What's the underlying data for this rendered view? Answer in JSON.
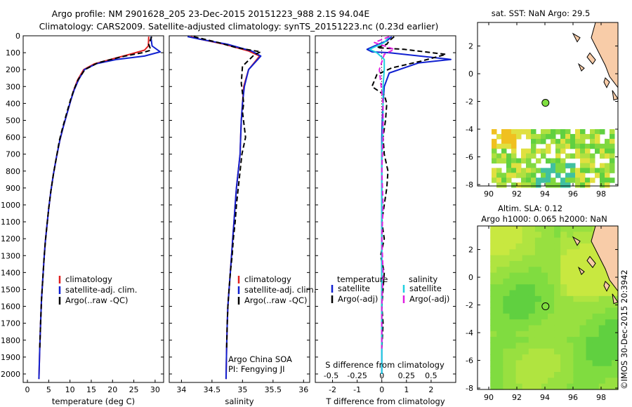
{
  "header": {
    "line1": "Argo profile: NM 2901628_205 23-Dec-2015 20151223_988 2.1S 94.04E",
    "line2": "Climatology: CARS2009. Satellite-adjusted climatology: synTS_20151223.nc (0.23d earlier)"
  },
  "footer": "©IMOS 30-Dec-2015 20:3942",
  "chart_data": [
    {
      "type": "line",
      "panel": "temperature",
      "xlabel": "temperature (deg C)",
      "ylim": [
        2050,
        0
      ],
      "xlim": [
        -1,
        32
      ],
      "xticks": [
        0,
        5,
        10,
        15,
        20,
        25,
        30
      ],
      "yticks": [
        0,
        100,
        200,
        300,
        400,
        500,
        600,
        700,
        800,
        900,
        1000,
        1100,
        1200,
        1300,
        1400,
        1500,
        1600,
        1700,
        1800,
        1900,
        2000
      ],
      "legend": [
        "climatology",
        "satellite-adj. clim.",
        "Argo(..raw -QC)"
      ],
      "series": [
        {
          "name": "climatology",
          "color": "#e02020",
          "x": [
            28.5,
            28.4,
            27.5,
            24,
            20.3,
            15.8,
            13.2,
            11.8,
            10.9,
            10.2,
            9.3,
            8.4,
            7.6,
            6.8,
            6.1,
            5.5,
            5,
            4.6,
            4.2,
            3.9,
            3.6,
            3.3,
            3.1,
            2.9,
            2.7
          ],
          "y": [
            5,
            60,
            85,
            110,
            135,
            165,
            200,
            260,
            320,
            380,
            460,
            540,
            620,
            720,
            820,
            920,
            1020,
            1120,
            1220,
            1320,
            1440,
            1560,
            1700,
            1850,
            2030
          ]
        },
        {
          "name": "satellite-adj. clim.",
          "color": "#1020d0",
          "x": [
            29,
            29.3,
            31.2,
            27.5,
            21,
            16.2,
            13.4,
            12,
            11,
            10.2,
            9.3,
            8.4,
            7.6,
            6.8,
            6.1,
            5.5,
            5,
            4.6,
            4.2,
            3.9,
            3.6,
            3.3,
            3.1,
            2.9,
            2.7
          ],
          "y": [
            5,
            60,
            95,
            120,
            140,
            165,
            200,
            260,
            320,
            380,
            460,
            540,
            620,
            720,
            820,
            920,
            1020,
            1120,
            1220,
            1320,
            1440,
            1560,
            1700,
            1850,
            2030
          ]
        },
        {
          "name": "Argo(..raw -QC)",
          "color": "#000000",
          "dashed": true,
          "x": [
            29.2,
            28.5,
            29,
            27,
            22,
            16.5,
            13.5,
            11.9,
            10.9,
            10.1,
            9.2,
            8.3,
            7.5,
            6.8,
            6.1,
            5.5,
            5,
            4.6,
            4.2,
            3.9,
            3.6,
            3.3,
            3.1,
            2.9
          ],
          "y": [
            5,
            50,
            85,
            100,
            125,
            160,
            200,
            260,
            320,
            380,
            460,
            540,
            620,
            720,
            820,
            920,
            1020,
            1120,
            1220,
            1320,
            1440,
            1560,
            1700,
            1850
          ]
        }
      ]
    },
    {
      "type": "line",
      "panel": "salinity",
      "xlabel": "salinity",
      "ylim": [
        2050,
        0
      ],
      "xlim": [
        33.8,
        36.1
      ],
      "xticks": [
        34,
        34.5,
        35,
        35.5,
        36
      ],
      "legend": [
        "climatology",
        "satellite-adj. clim.",
        "Argo(..raw -QC)"
      ],
      "annotation": [
        "Argo China SOA",
        "PI: Fengying JI"
      ],
      "series": [
        {
          "name": "climatology",
          "color": "#e02020",
          "x": [
            34.15,
            34.3,
            34.7,
            35.1,
            35.28,
            35.1,
            35.02,
            35.0,
            34.98,
            34.97,
            34.96,
            34.93,
            34.9,
            34.88,
            34.86,
            34.84,
            34.82,
            34.8,
            34.78,
            34.76,
            34.75,
            34.74,
            34.73
          ],
          "y": [
            5,
            20,
            50,
            90,
            120,
            200,
            300,
            400,
            500,
            600,
            700,
            800,
            900,
            1000,
            1100,
            1200,
            1300,
            1400,
            1500,
            1600,
            1700,
            1850,
            2030
          ]
        },
        {
          "name": "satellite-adj. clim.",
          "color": "#1020d0",
          "x": [
            34.1,
            34.3,
            34.75,
            35.15,
            35.3,
            35.1,
            35.03,
            35.0,
            34.98,
            34.97,
            34.96,
            34.93,
            34.9,
            34.88,
            34.86,
            34.84,
            34.82,
            34.8,
            34.78,
            34.76,
            34.75,
            34.74,
            34.73
          ],
          "y": [
            5,
            20,
            50,
            90,
            120,
            200,
            300,
            400,
            500,
            600,
            700,
            800,
            900,
            1000,
            1100,
            1200,
            1300,
            1400,
            1500,
            1600,
            1700,
            1850,
            2030
          ]
        },
        {
          "name": "Argo(..raw -QC)",
          "color": "#000000",
          "dashed": true,
          "x": [
            34.2,
            34.6,
            34.9,
            35.3,
            35.2,
            35.0,
            34.98,
            35.02,
            35.0,
            35.05,
            34.99,
            34.96,
            34.93,
            34.9,
            34.88,
            34.85,
            34.83,
            34.8,
            34.78,
            34.76,
            34.75,
            34.74
          ],
          "y": [
            5,
            40,
            70,
            95,
            110,
            180,
            280,
            400,
            450,
            600,
            700,
            800,
            900,
            1000,
            1100,
            1200,
            1300,
            1400,
            1500,
            1600,
            1700,
            1850
          ]
        }
      ]
    },
    {
      "type": "line",
      "panel": "difference",
      "xlabel": "T difference from climatology",
      "xlabel_top": "S difference from climatology",
      "ylim": [
        2050,
        0
      ],
      "xlim": [
        -2.7,
        3.0
      ],
      "xticks": [
        -2,
        -1,
        0,
        1,
        2
      ],
      "top_ticks": [
        "-0.5",
        "-0.25",
        "0",
        "0.25",
        "0.5"
      ],
      "legend": {
        "temperature": [
          "satellite",
          "Argo(-adj)"
        ],
        "salinity": [
          "satellite",
          "Argo(-adj)"
        ]
      },
      "legend_titles": [
        "temperature",
        "salinity"
      ],
      "series": [
        {
          "name": "satellite",
          "group": "temperature",
          "color": "#1020d0",
          "x": [
            0.4,
            0.2,
            -0.3,
            -0.6,
            -0.4,
            0.3,
            2.8,
            1.5,
            0.3,
            0.1,
            0.05,
            0.02,
            0.0,
            0.0,
            0.0,
            0.0,
            0.0,
            0.0,
            0.0,
            0.0,
            0.0
          ],
          "y": [
            5,
            30,
            60,
            80,
            95,
            100,
            140,
            160,
            220,
            300,
            400,
            500,
            600,
            700,
            800,
            1000,
            1200,
            1400,
            1600,
            1800,
            2000
          ]
        },
        {
          "name": "Argo(-adj)",
          "group": "temperature",
          "color": "#000000",
          "dashed": true,
          "x": [
            0.5,
            0.3,
            0.2,
            -0.2,
            0.9,
            2.6,
            1.6,
            0.4,
            -0.2,
            -0.4,
            0.1,
            0.2,
            0.15,
            0.05,
            0.1,
            0.25,
            0.2,
            0.1,
            0.0,
            0.1,
            -0.05,
            0.1,
            0.0,
            0.05,
            0.0
          ],
          "y": [
            5,
            30,
            50,
            70,
            80,
            110,
            150,
            190,
            230,
            300,
            350,
            400,
            500,
            600,
            700,
            800,
            900,
            1000,
            1100,
            1200,
            1300,
            1400,
            1600,
            1700,
            1850
          ]
        },
        {
          "name": "satellite",
          "group": "salinity",
          "color": "#20d0e0",
          "x": [
            0.3,
            0.1,
            -0.5,
            -0.2,
            0.1,
            0.1,
            0.05,
            0.05,
            0.0,
            0.0,
            0.0,
            0.0,
            0.0,
            0.0,
            0.0,
            0.0
          ],
          "y": [
            5,
            40,
            80,
            100,
            140,
            200,
            300,
            500,
            700,
            900,
            1100,
            1300,
            1500,
            1700,
            1900,
            2000
          ]
        },
        {
          "name": "Argo(-adj)",
          "group": "salinity",
          "color": "#e020e0",
          "dashed": true,
          "x": [
            0.3,
            -0.3,
            0.5,
            0.1,
            -0.1,
            0.05,
            0.05,
            0.0,
            0.05,
            0.0,
            0.05,
            0.0,
            0.0,
            0.0
          ],
          "y": [
            5,
            40,
            80,
            110,
            200,
            400,
            600,
            800,
            1000,
            1200,
            1400,
            1600,
            1700,
            1850
          ]
        }
      ]
    }
  ],
  "maps": {
    "sst": {
      "title": "sat. SST: NaN Argo: 29.5",
      "xticks": [
        90,
        92,
        94,
        96,
        98
      ],
      "yticks": [
        2,
        0,
        -2,
        -4,
        -6,
        -8
      ],
      "argo_point": {
        "lon": 94.04,
        "lat": -2.1
      }
    },
    "sla": {
      "title1": "Altim. SLA: 0.12",
      "title2": "Argo h1000: 0.065 h2000: NaN",
      "xticks": [
        90,
        92,
        94,
        96,
        98
      ],
      "yticks": [
        2,
        0,
        -2,
        -4,
        -6,
        -8
      ],
      "argo_point": {
        "lon": 94.04,
        "lat": -2.1
      }
    },
    "colors": {
      "land": "#f8cca8",
      "point": "#80e040",
      "sla_field": "#98e040"
    }
  }
}
